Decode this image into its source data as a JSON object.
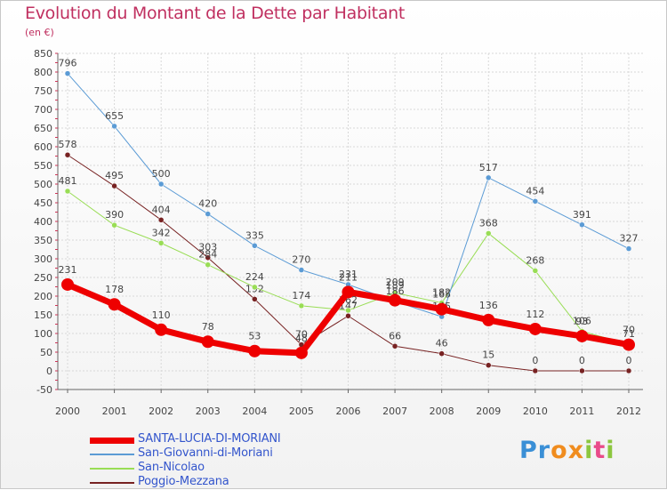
{
  "title": "Evolution du Montant de la Dette par Habitant",
  "unit_label": "(en €)",
  "logo_text": "Proxiti",
  "colors": {
    "title": "#c03060",
    "grid": "#d8d8d8",
    "axis": "#666666",
    "labels": "#444444"
  },
  "chart_data": {
    "type": "line",
    "x": [
      "2000",
      "2001",
      "2002",
      "2003",
      "2004",
      "2005",
      "2006",
      "2007",
      "2008",
      "2009",
      "2010",
      "2011",
      "2012"
    ],
    "ylim": [
      -50,
      850
    ],
    "yticks": [
      -50,
      0,
      50,
      100,
      150,
      200,
      250,
      300,
      350,
      400,
      450,
      500,
      550,
      600,
      650,
      700,
      750,
      800,
      850
    ],
    "grid": true,
    "legend_position": "bottom-left",
    "series": [
      {
        "name": "SANTA-LUCIA-DI-MORIANI",
        "color": "#ee0000",
        "values": [
          231,
          178,
          110,
          78,
          53,
          48,
          211,
          189,
          165,
          136,
          112,
          93,
          70
        ],
        "labels": [
          "231",
          "178",
          "110",
          "78",
          "53",
          "48",
          "211",
          "189",
          "165",
          "136",
          "112",
          "93",
          "70"
        ]
      },
      {
        "name": "San-Giovanni-di-Moriani",
        "color": "#5b9bd5",
        "values": [
          796,
          655,
          500,
          420,
          335,
          270,
          231,
          186,
          145,
          517,
          454,
          391,
          327
        ],
        "labels": [
          "796",
          "655",
          "500",
          "420",
          "335",
          "270",
          "231",
          "186",
          "145",
          "517",
          "454",
          "391",
          "327"
        ]
      },
      {
        "name": "San-Nicolao",
        "color": "#99dd55",
        "values": [
          481,
          390,
          342,
          284,
          224,
          174,
          162,
          209,
          182,
          368,
          268,
          106,
          71
        ],
        "labels": [
          "481",
          "390",
          "342",
          "284",
          "224",
          "174",
          "162",
          "209",
          "182",
          "368",
          "268",
          "106",
          "71"
        ]
      },
      {
        "name": "Poggio-Mezzana",
        "color": "#772222",
        "values": [
          578,
          495,
          404,
          303,
          192,
          70,
          147,
          66,
          46,
          15,
          0,
          0,
          0
        ],
        "labels": [
          "578",
          "495",
          "404",
          "303",
          "192",
          "70",
          "147",
          "66",
          "46",
          "15",
          "0",
          "0",
          "0"
        ]
      }
    ]
  }
}
